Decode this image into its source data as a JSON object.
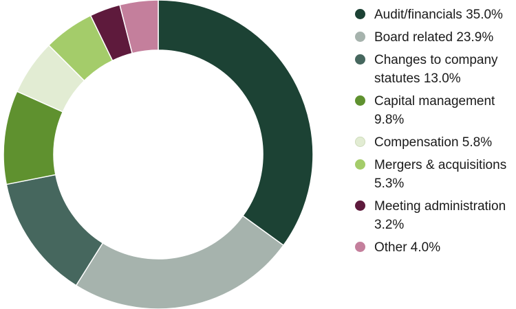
{
  "chart_data": {
    "type": "pie",
    "variant": "donut",
    "title": "",
    "legend_position": "right",
    "slices": [
      {
        "label": "Audit/financials",
        "value": 35.0,
        "display": "35.0%",
        "color": "#1c4234"
      },
      {
        "label": "Board related",
        "value": 23.9,
        "display": "23.9%",
        "color": "#a6b3ad"
      },
      {
        "label": "Changes to company statutes",
        "value": 13.0,
        "display": "13.0%",
        "color": "#46675e"
      },
      {
        "label": "Capital management",
        "value": 9.8,
        "display": "9.8%",
        "color": "#5f912f"
      },
      {
        "label": "Compensation",
        "value": 5.8,
        "display": "5.8%",
        "color": "#e2ecd3"
      },
      {
        "label": "Mergers & acquisitions",
        "value": 5.3,
        "display": "5.3%",
        "color": "#a4cc6a"
      },
      {
        "label": "Meeting administration",
        "value": 3.2,
        "display": "3.2%",
        "color": "#5e1a3c"
      },
      {
        "label": "Other",
        "value": 4.0,
        "display": "4.0%",
        "color": "#c47f9c"
      }
    ]
  }
}
